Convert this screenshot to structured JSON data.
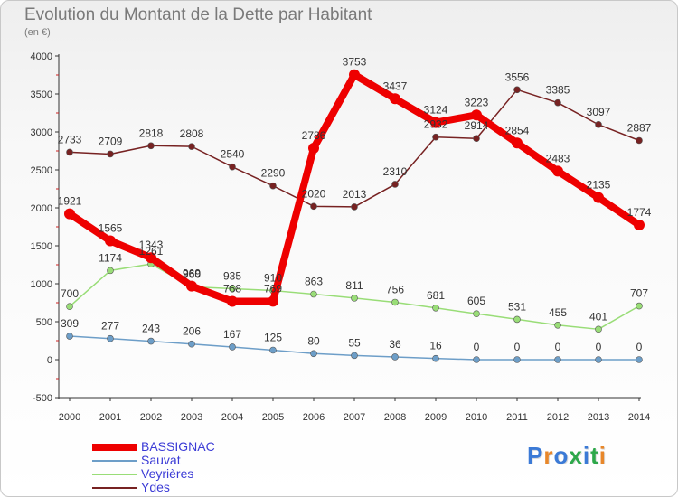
{
  "title": "Evolution du Montant de la Dette par Habitant",
  "subtitle": "(en €)",
  "logo": {
    "text": "Proxiti",
    "colors": [
      "#3b7ad6",
      "#e8872a",
      "#3b7ad6",
      "#2da84a",
      "#3b7ad6",
      "#2da84a",
      "#e8872a"
    ]
  },
  "chart_data": {
    "type": "line",
    "x": [
      "2000",
      "2001",
      "2002",
      "2003",
      "2004",
      "2005",
      "2006",
      "2007",
      "2008",
      "2009",
      "2010",
      "2011",
      "2012",
      "2013",
      "2014"
    ],
    "ylim": [
      -500,
      4000
    ],
    "yticks": [
      "-500",
      "0",
      "500",
      "1000",
      "1500",
      "2000",
      "2500",
      "3000",
      "3500",
      "4000"
    ],
    "grid": false,
    "legend_position": "bottom-left",
    "series": [
      {
        "name": "BASSIGNAC",
        "color": "#ee0000",
        "labels": [
          "1921",
          "1565",
          "1343",
          "969",
          "768",
          "769",
          "2786",
          "3753",
          "3437",
          "3124",
          "3223",
          "2854",
          "2483",
          "2135",
          "1774"
        ],
        "values": [
          1921,
          1565,
          1343,
          969,
          768,
          769,
          2786,
          3753,
          3437,
          3124,
          3223,
          2854,
          2483,
          2135,
          1774
        ]
      },
      {
        "name": "Sauvat",
        "color": "#6d9ec8",
        "labels": [
          "309",
          "277",
          "243",
          "206",
          "167",
          "125",
          "80",
          "55",
          "36",
          "16",
          "0",
          "0",
          "0",
          "0",
          "0"
        ],
        "values": [
          309,
          277,
          243,
          206,
          167,
          125,
          80,
          55,
          36,
          16,
          0,
          0,
          0,
          0,
          0
        ]
      },
      {
        "name": "Veyrières",
        "color": "#99dd77",
        "labels": [
          "700",
          "1174",
          "1261",
          "960",
          "935",
          "910",
          "863",
          "811",
          "756",
          "681",
          "605",
          "531",
          "455",
          "401",
          "707"
        ],
        "values": [
          700,
          1174,
          1261,
          960,
          935,
          910,
          863,
          811,
          756,
          681,
          605,
          531,
          455,
          401,
          707
        ]
      },
      {
        "name": "Ydes",
        "color": "#772222",
        "labels": [
          "2733",
          "2709",
          "2818",
          "2808",
          "2540",
          "2290",
          "2020",
          "2013",
          "2310",
          "2932",
          "2914",
          "3556",
          "3385",
          "3097",
          "2887"
        ],
        "values": [
          2733,
          2709,
          2818,
          2808,
          2540,
          2290,
          2020,
          2013,
          2310,
          2932,
          2914,
          3556,
          3385,
          3097,
          2887
        ]
      }
    ]
  }
}
